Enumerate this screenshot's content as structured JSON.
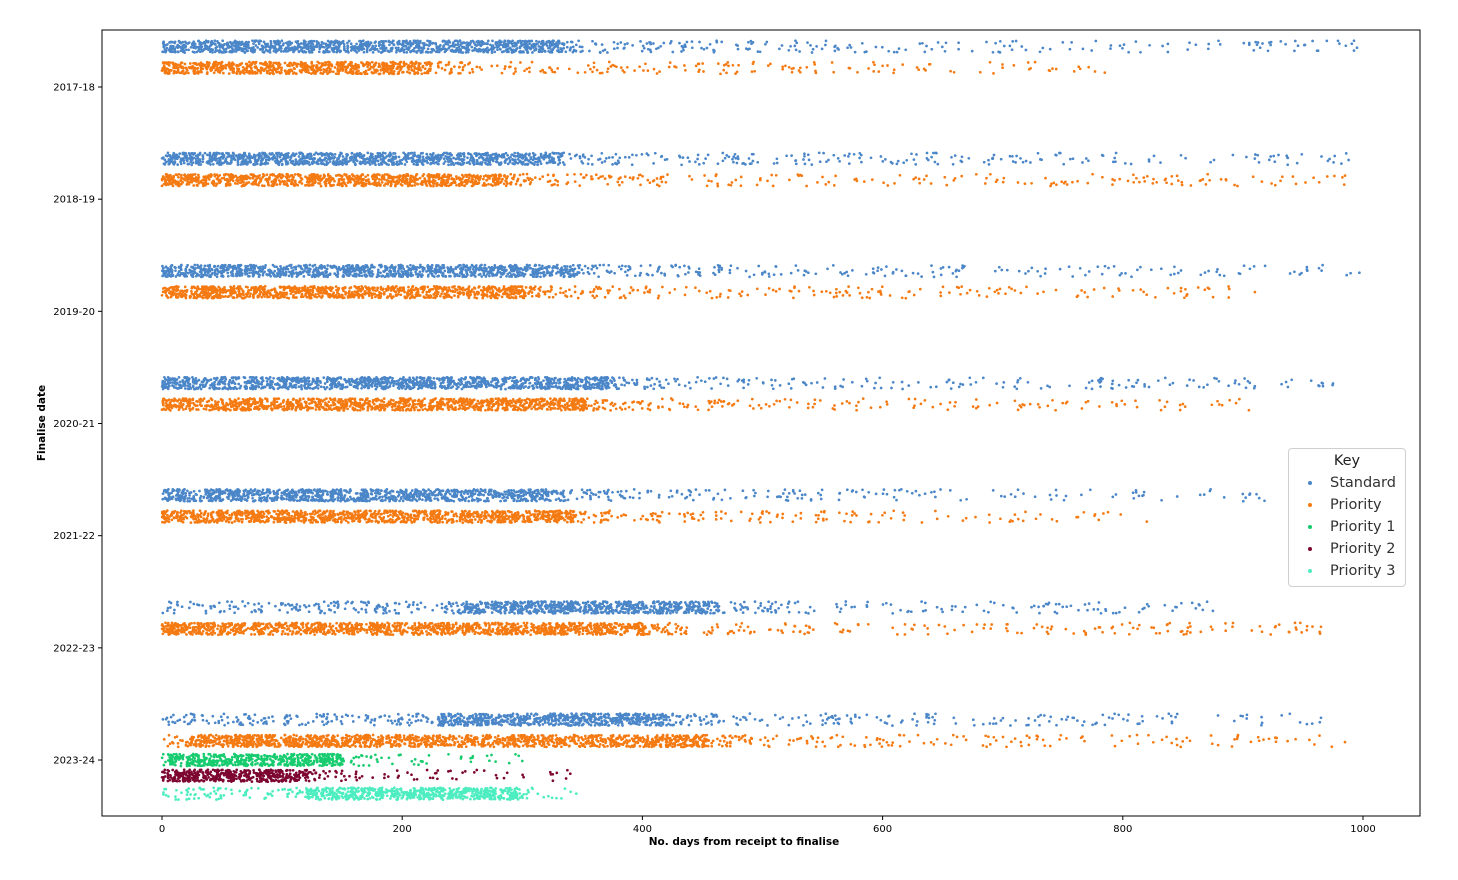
{
  "chart_data": {
    "type": "scatter",
    "xlabel": "No. days from receipt to finalise",
    "ylabel": "Finalise date",
    "xlim": [
      -50,
      1048
    ],
    "x_ticks": [
      0,
      200,
      400,
      600,
      800,
      1000
    ],
    "categories": [
      "2017-18",
      "2018-19",
      "2019-20",
      "2020-21",
      "2021-22",
      "2022-23",
      "2023-24"
    ],
    "grid": false,
    "legend": {
      "title": "Key",
      "placement": "right",
      "entries": [
        {
          "name": "Standard",
          "color": "#4a86c8"
        },
        {
          "name": "Priority",
          "color": "#f57a12"
        },
        {
          "name": "Priority 1",
          "color": "#17cc6e"
        },
        {
          "name": "Priority 2",
          "color": "#7d0630"
        },
        {
          "name": "Priority 3",
          "color": "#4dedc0"
        }
      ]
    },
    "series": [
      {
        "name": "Standard",
        "color": "#4a86c8",
        "row_offset": -0.36,
        "groups": [
          {
            "category": "2017-18",
            "dense_range": [
              0,
              330
            ],
            "max": 995
          },
          {
            "category": "2018-19",
            "dense_range": [
              0,
              330
            ],
            "max": 988
          },
          {
            "category": "2019-20",
            "dense_range": [
              0,
              340
            ],
            "max": 997
          },
          {
            "category": "2020-21",
            "dense_range": [
              0,
              370
            ],
            "max": 975
          },
          {
            "category": "2021-22",
            "dense_range": [
              0,
              320
            ],
            "max": 918
          },
          {
            "category": "2022-23",
            "dense_range": [
              250,
              460
            ],
            "max": 875
          },
          {
            "category": "2023-24",
            "dense_range": [
              230,
              420
            ],
            "max": 965
          }
        ]
      },
      {
        "name": "Priority",
        "color": "#f57a12",
        "row_offset": -0.17,
        "groups": [
          {
            "category": "2017-18",
            "dense_range": [
              0,
              220
            ],
            "max": 785
          },
          {
            "category": "2018-19",
            "dense_range": [
              0,
              280
            ],
            "max": 985
          },
          {
            "category": "2019-20",
            "dense_range": [
              0,
              300
            ],
            "max": 910
          },
          {
            "category": "2020-21",
            "dense_range": [
              0,
              350
            ],
            "max": 905
          },
          {
            "category": "2021-22",
            "dense_range": [
              0,
              340
            ],
            "max": 820
          },
          {
            "category": "2022-23",
            "dense_range": [
              0,
              400
            ],
            "max": 965
          },
          {
            "category": "2023-24",
            "dense_range": [
              20,
              450
            ],
            "max": 985
          }
        ]
      },
      {
        "name": "Priority 1",
        "color": "#17cc6e",
        "row_offset": 0.0,
        "groups": [
          {
            "category": "2023-24",
            "dense_range": [
              5,
              150
            ],
            "max": 300
          }
        ]
      },
      {
        "name": "Priority 2",
        "color": "#7d0630",
        "row_offset": 0.14,
        "groups": [
          {
            "category": "2023-24",
            "dense_range": [
              0,
              120
            ],
            "max": 340
          }
        ]
      },
      {
        "name": "Priority 3",
        "color": "#4dedc0",
        "row_offset": 0.3,
        "groups": [
          {
            "category": "2023-24",
            "dense_range": [
              120,
              300
            ],
            "max": 345
          }
        ]
      }
    ]
  }
}
